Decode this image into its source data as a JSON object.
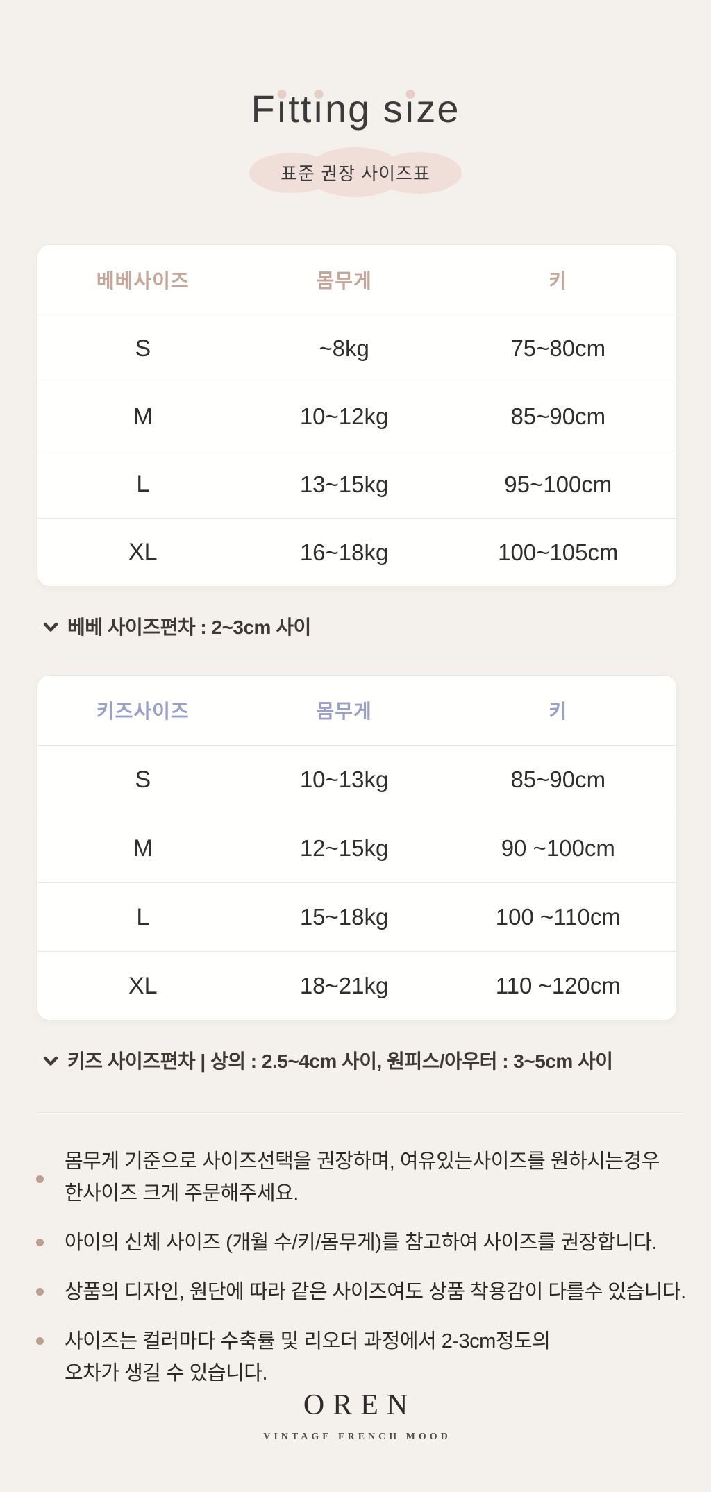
{
  "header": {
    "title": "Fitting size",
    "badge": "표준 권장 사이즈표"
  },
  "bebe_table": {
    "columns": [
      "베베사이즈",
      "몸무게",
      "키"
    ],
    "rows": [
      {
        "size": "S",
        "weight": "~8kg",
        "height": "75~80cm"
      },
      {
        "size": "M",
        "weight": "10~12kg",
        "height": "85~90cm"
      },
      {
        "size": "L",
        "weight": "13~15kg",
        "height": "95~100cm"
      },
      {
        "size": "XL",
        "weight": "16~18kg",
        "height": "100~105cm"
      }
    ],
    "note": "베베 사이즈편차 : 2~3cm 사이"
  },
  "kids_table": {
    "columns": [
      "키즈사이즈",
      "몸무게",
      "키"
    ],
    "rows": [
      {
        "size": "S",
        "weight": "10~13kg",
        "height": "85~90cm"
      },
      {
        "size": "M",
        "weight": "12~15kg",
        "height": "90 ~100cm"
      },
      {
        "size": "L",
        "weight": "15~18kg",
        "height": "100 ~110cm"
      },
      {
        "size": "XL",
        "weight": "18~21kg",
        "height": "110 ~120cm"
      }
    ],
    "note": "키즈 사이즈편차 | 상의 : 2.5~4cm 사이, 원피스/아우터 : 3~5cm 사이"
  },
  "notes": [
    "몸무게 기준으로 사이즈선택을 권장하며, 여유있는사이즈를 원하시는경우\n한사이즈 크게 주문해주세요.",
    "아이의 신체 사이즈 (개월 수/키/몸무게)를 참고하여 사이즈를 권장합니다.",
    "상품의 디자인, 원단에 따라 같은 사이즈여도 상품 착용감이 다를수 있습니다.",
    "사이즈는 컬러마다 수축률 및 리오더 과정에서 2-3cm정도의\n오차가 생길 수 있습니다."
  ],
  "footer": {
    "brand": "OREN",
    "tagline": "VINTAGE FRENCH MOOD"
  },
  "icons": {
    "note_marker": "chevron-down",
    "title_marker": "pink-dot",
    "bullet_marker": "round-dot"
  },
  "colors": {
    "page_background": "#f4f1ec",
    "card_background": "#fffffe",
    "bebe_header_text": "#c6a698",
    "kids_header_text": "#9aa0c9",
    "badge_pink": "#f0ded9",
    "title_dot_pink": "#e7cdc7",
    "note_text": "#3f3a31",
    "bullet_dot": "#bda08f",
    "row_line": "#e9e6e1",
    "body_text": "#333333"
  }
}
